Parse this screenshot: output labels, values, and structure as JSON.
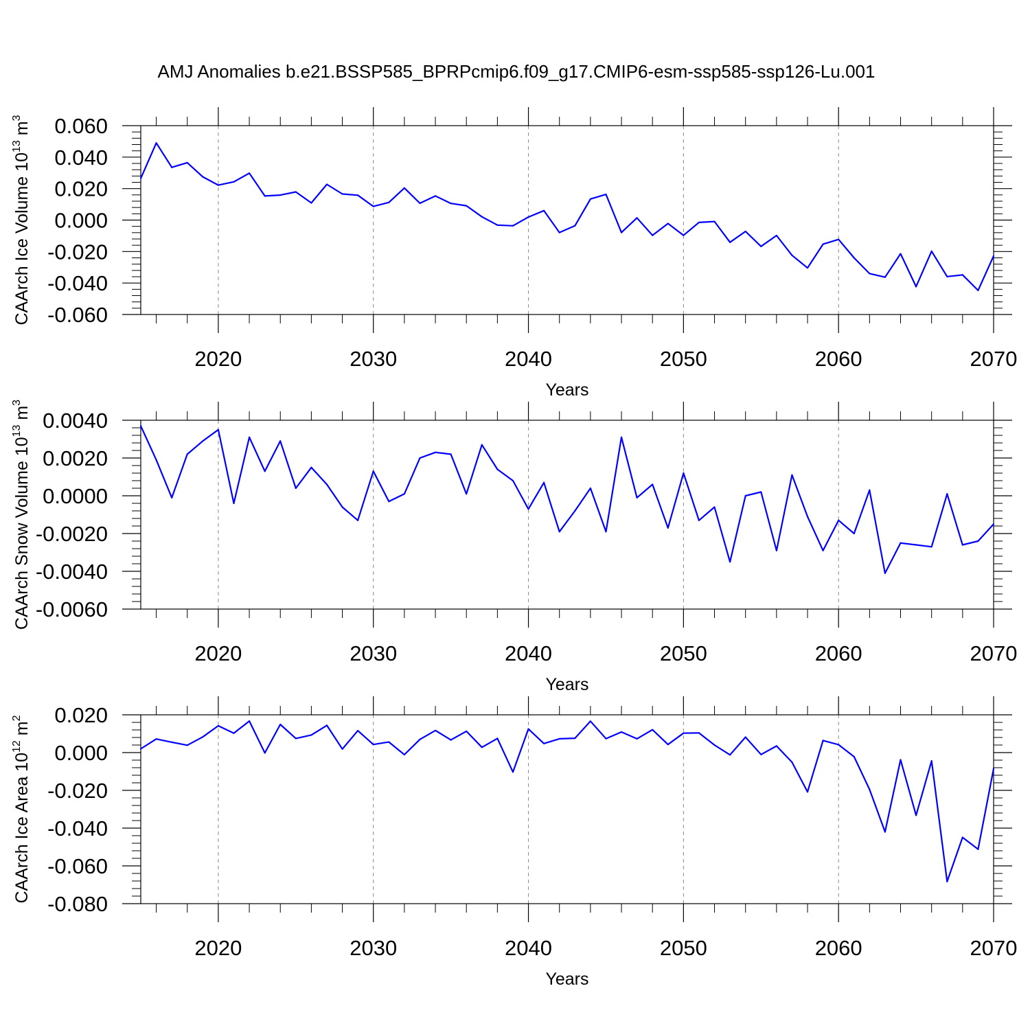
{
  "title": "AMJ Anomalies b.e21.BSSP585_BPRPcmip6.f09_g17.CMIP6-esm-ssp585-ssp126-Lu.001",
  "line_color": "#0000ff",
  "chart_data": [
    {
      "type": "line",
      "ylabel": "CAArch Ice Volume 10",
      "ylabel_exp": "13",
      "ylabel_unit": " m",
      "ylabel_unit_exp": "3",
      "xlabel": "Years",
      "xlim": [
        2015,
        2070
      ],
      "ylim": [
        -0.06,
        0.06
      ],
      "xticks": [
        2020,
        2030,
        2040,
        2050,
        2060,
        2070
      ],
      "yticks": [
        "0.060",
        "0.040",
        "0.020",
        "0.000",
        "-0.020",
        "-0.040",
        "-0.060"
      ],
      "ytick_values": [
        0.06,
        0.04,
        0.02,
        0.0,
        -0.02,
        -0.04,
        -0.06
      ],
      "x": [
        2015,
        2016,
        2017,
        2018,
        2019,
        2020,
        2021,
        2022,
        2023,
        2024,
        2025,
        2026,
        2027,
        2028,
        2029,
        2030,
        2031,
        2032,
        2033,
        2034,
        2035,
        2036,
        2037,
        2038,
        2039,
        2040,
        2041,
        2042,
        2043,
        2044,
        2045,
        2046,
        2047,
        2048,
        2049,
        2050,
        2051,
        2052,
        2053,
        2054,
        2055,
        2056,
        2057,
        2058,
        2059,
        2060,
        2061,
        2062,
        2063,
        2064,
        2065,
        2066,
        2067,
        2068,
        2069,
        2070
      ],
      "values": [
        0.0265,
        0.049,
        0.0335,
        0.0365,
        0.0275,
        0.0222,
        0.0243,
        0.0298,
        0.0153,
        0.0159,
        0.0179,
        0.0109,
        0.0227,
        0.0166,
        0.0158,
        0.0087,
        0.0112,
        0.0204,
        0.0107,
        0.0153,
        0.0106,
        0.0091,
        0.0021,
        -0.0032,
        -0.0036,
        0.0019,
        0.006,
        -0.0079,
        -0.0036,
        0.0134,
        0.0163,
        -0.0079,
        0.0014,
        -0.0097,
        -0.0022,
        -0.0097,
        -0.0015,
        -0.0009,
        -0.0141,
        -0.0072,
        -0.0167,
        -0.0098,
        -0.0224,
        -0.0304,
        -0.0153,
        -0.0123,
        -0.024,
        -0.034,
        -0.0363,
        -0.0214,
        -0.0423,
        -0.0198,
        -0.0359,
        -0.0348,
        -0.0447,
        -0.0228
      ]
    },
    {
      "type": "line",
      "ylabel": "CAArch Snow Volume 10",
      "ylabel_exp": "13",
      "ylabel_unit": " m",
      "ylabel_unit_exp": "3",
      "xlabel": "Years",
      "xlim": [
        2015,
        2070
      ],
      "ylim": [
        -0.006,
        0.004
      ],
      "xticks": [
        2020,
        2030,
        2040,
        2050,
        2060,
        2070
      ],
      "yticks": [
        "0.0040",
        "0.0020",
        "0.0000",
        "-0.0020",
        "-0.0040",
        "-0.0060"
      ],
      "ytick_values": [
        0.004,
        0.002,
        0.0,
        -0.002,
        -0.004,
        -0.006
      ],
      "x": [
        2015,
        2016,
        2017,
        2018,
        2019,
        2020,
        2021,
        2022,
        2023,
        2024,
        2025,
        2026,
        2027,
        2028,
        2029,
        2030,
        2031,
        2032,
        2033,
        2034,
        2035,
        2036,
        2037,
        2038,
        2039,
        2040,
        2041,
        2042,
        2043,
        2044,
        2045,
        2046,
        2047,
        2048,
        2049,
        2050,
        2051,
        2052,
        2053,
        2054,
        2055,
        2056,
        2057,
        2058,
        2059,
        2060,
        2061,
        2062,
        2063,
        2064,
        2065,
        2066,
        2067,
        2068,
        2069,
        2070
      ],
      "values": [
        0.0037,
        0.0019,
        -0.0001,
        0.0022,
        0.0029,
        0.0035,
        -0.0004,
        0.0031,
        0.0013,
        0.0029,
        0.0004,
        0.0015,
        0.0006,
        -0.0006,
        -0.0013,
        0.0013,
        -0.0003,
        0.0001,
        0.002,
        0.0023,
        0.0022,
        0.0001,
        0.0027,
        0.0014,
        0.0008,
        -0.0007,
        0.0007,
        -0.0019,
        -0.0008,
        0.0004,
        -0.0019,
        0.0031,
        -0.0001,
        0.0006,
        -0.0017,
        0.0012,
        -0.0013,
        -0.0006,
        -0.0035,
        0.0,
        0.0002,
        -0.0029,
        0.0011,
        -0.0011,
        -0.0029,
        -0.0013,
        -0.002,
        0.0003,
        -0.0041,
        -0.0025,
        -0.0026,
        -0.0027,
        0.0001,
        -0.0026,
        -0.0024,
        -0.0015
      ]
    },
    {
      "type": "line",
      "ylabel": "CAArch Ice Area 10",
      "ylabel_exp": "12",
      "ylabel_unit": " m",
      "ylabel_unit_exp": "2",
      "xlabel": "Years",
      "xlim": [
        2015,
        2070
      ],
      "ylim": [
        -0.08,
        0.02
      ],
      "xticks": [
        2020,
        2030,
        2040,
        2050,
        2060,
        2070
      ],
      "yticks": [
        "0.020",
        "0.000",
        "-0.020",
        "-0.040",
        "-0.060",
        "-0.080"
      ],
      "ytick_values": [
        0.02,
        0.0,
        -0.02,
        -0.04,
        -0.06,
        -0.08
      ],
      "x": [
        2015,
        2016,
        2017,
        2018,
        2019,
        2020,
        2021,
        2022,
        2023,
        2024,
        2025,
        2026,
        2027,
        2028,
        2029,
        2030,
        2031,
        2032,
        2033,
        2034,
        2035,
        2036,
        2037,
        2038,
        2039,
        2040,
        2041,
        2042,
        2043,
        2044,
        2045,
        2046,
        2047,
        2048,
        2049,
        2050,
        2051,
        2052,
        2053,
        2054,
        2055,
        2056,
        2057,
        2058,
        2059,
        2060,
        2061,
        2062,
        2063,
        2064,
        2065,
        2066,
        2067,
        2068,
        2069,
        2070
      ],
      "values": [
        0.002,
        0.0072,
        0.0055,
        0.0039,
        0.0083,
        0.0142,
        0.0103,
        0.0167,
        -0.0002,
        0.0149,
        0.0075,
        0.0093,
        0.0144,
        0.0019,
        0.0116,
        0.0043,
        0.0056,
        -0.0011,
        0.007,
        0.0117,
        0.0067,
        0.0113,
        0.0028,
        0.0075,
        -0.0103,
        0.0125,
        0.0048,
        0.0073,
        0.0076,
        0.0166,
        0.0074,
        0.0109,
        0.0073,
        0.0121,
        0.0043,
        0.0103,
        0.0104,
        0.004,
        -0.0012,
        0.0082,
        -0.001,
        0.0035,
        -0.0051,
        -0.0208,
        0.0064,
        0.0042,
        -0.0022,
        -0.0195,
        -0.042,
        -0.0038,
        -0.0332,
        -0.0044,
        -0.0683,
        -0.0449,
        -0.0512,
        -0.0085
      ]
    }
  ]
}
